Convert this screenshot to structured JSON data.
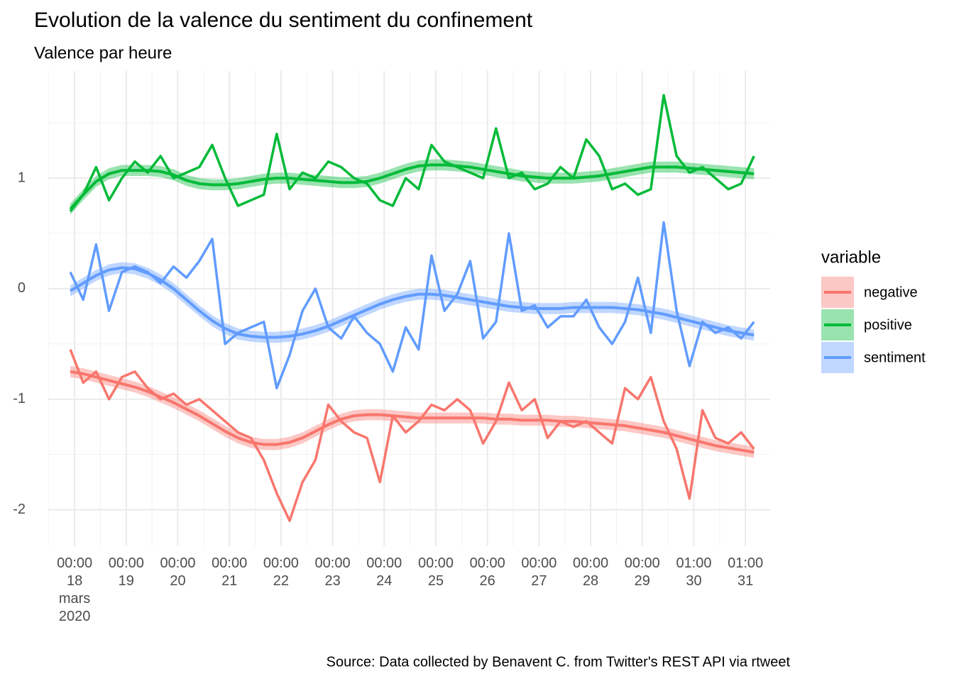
{
  "chart_data": {
    "type": "line",
    "title": "Evolution de la valence du sentiment du confinement",
    "subtitle": "Valence par heure",
    "caption": "Source: Data collected by Benavent C. from Twitter's REST API via rtweet",
    "legend_title": "variable",
    "legend": "right",
    "grid": true,
    "xlim": [
      "2020-03-17T11:45+01:00",
      "2020-03-31T12:30+02:00"
    ],
    "xticks": [
      {
        "value": "2020-03-18T00:00+01:00",
        "label": "00:00\n18\nmars\n2020"
      },
      {
        "value": "2020-03-19T00:00+01:00",
        "label": "00:00\n19"
      },
      {
        "value": "2020-03-20T00:00+01:00",
        "label": "00:00\n20"
      },
      {
        "value": "2020-03-21T00:00+01:00",
        "label": "00:00\n21"
      },
      {
        "value": "2020-03-22T00:00+01:00",
        "label": "00:00\n22"
      },
      {
        "value": "2020-03-23T00:00+01:00",
        "label": "00:00\n23"
      },
      {
        "value": "2020-03-24T00:00+01:00",
        "label": "00:00\n24"
      },
      {
        "value": "2020-03-25T00:00+01:00",
        "label": "00:00\n25"
      },
      {
        "value": "2020-03-26T00:00+01:00",
        "label": "00:00\n26"
      },
      {
        "value": "2020-03-27T00:00+01:00",
        "label": "00:00\n27"
      },
      {
        "value": "2020-03-28T00:00+01:00",
        "label": "00:00\n28"
      },
      {
        "value": "2020-03-29T00:00+01:00",
        "label": "00:00\n29"
      },
      {
        "value": "2020-03-30T01:00+02:00",
        "label": "01:00\n30"
      },
      {
        "value": "2020-03-31T01:00+02:00",
        "label": "01:00\n31"
      }
    ],
    "ylim": [
      -2.33,
      1.97
    ],
    "yticks": [
      -2,
      -1,
      0,
      1
    ],
    "x": [
      "2020-03-17T22:00+01:00",
      "2020-03-18T04:00+01:00",
      "2020-03-18T10:00+01:00",
      "2020-03-18T16:00+01:00",
      "2020-03-18T22:00+01:00",
      "2020-03-19T04:00+01:00",
      "2020-03-19T10:00+01:00",
      "2020-03-19T16:00+01:00",
      "2020-03-19T22:00+01:00",
      "2020-03-20T04:00+01:00",
      "2020-03-20T10:00+01:00",
      "2020-03-20T16:00+01:00",
      "2020-03-20T22:00+01:00",
      "2020-03-21T04:00+01:00",
      "2020-03-21T10:00+01:00",
      "2020-03-21T16:00+01:00",
      "2020-03-21T22:00+01:00",
      "2020-03-22T04:00+01:00",
      "2020-03-22T10:00+01:00",
      "2020-03-22T16:00+01:00",
      "2020-03-22T22:00+01:00",
      "2020-03-23T04:00+01:00",
      "2020-03-23T10:00+01:00",
      "2020-03-23T16:00+01:00",
      "2020-03-23T22:00+01:00",
      "2020-03-24T04:00+01:00",
      "2020-03-24T10:00+01:00",
      "2020-03-24T16:00+01:00",
      "2020-03-24T22:00+01:00",
      "2020-03-25T04:00+01:00",
      "2020-03-25T10:00+01:00",
      "2020-03-25T16:00+01:00",
      "2020-03-25T22:00+01:00",
      "2020-03-26T04:00+01:00",
      "2020-03-26T10:00+01:00",
      "2020-03-26T16:00+01:00",
      "2020-03-26T22:00+01:00",
      "2020-03-27T04:00+01:00",
      "2020-03-27T10:00+01:00",
      "2020-03-27T16:00+01:00",
      "2020-03-27T22:00+01:00",
      "2020-03-28T04:00+01:00",
      "2020-03-28T10:00+01:00",
      "2020-03-28T16:00+01:00",
      "2020-03-28T22:00+01:00",
      "2020-03-29T04:00+01:00",
      "2020-03-29T10:00+01:00",
      "2020-03-29T16:00+01:00",
      "2020-03-29T22:00+01:00",
      "2020-03-30T04:00+01:00",
      "2020-03-30T10:00+01:00",
      "2020-03-30T16:00+01:00",
      "2020-03-30T22:00+01:00",
      "2020-03-31T04:00+01:00"
    ],
    "series": [
      {
        "name": "negative",
        "color": "#F8766D",
        "band": 0.05,
        "values": [
          -0.55,
          -0.85,
          -0.75,
          -1.0,
          -0.8,
          -0.75,
          -0.9,
          -1.0,
          -0.95,
          -1.05,
          -1.0,
          -1.1,
          -1.2,
          -1.3,
          -1.35,
          -1.55,
          -1.85,
          -2.1,
          -1.75,
          -1.55,
          -1.05,
          -1.2,
          -1.3,
          -1.35,
          -1.75,
          -1.15,
          -1.3,
          -1.2,
          -1.05,
          -1.1,
          -1.0,
          -1.1,
          -1.4,
          -1.2,
          -0.85,
          -1.1,
          -1.0,
          -1.35,
          -1.2,
          -1.25,
          -1.2,
          -1.3,
          -1.4,
          -0.9,
          -1.0,
          -0.8,
          -1.2,
          -1.45,
          -1.9,
          -1.1,
          -1.35,
          -1.4,
          -1.3,
          -1.45
        ],
        "smooth": [
          -0.75,
          -0.77,
          -0.8,
          -0.83,
          -0.86,
          -0.89,
          -0.93,
          -0.98,
          -1.03,
          -1.09,
          -1.15,
          -1.22,
          -1.29,
          -1.35,
          -1.39,
          -1.41,
          -1.41,
          -1.39,
          -1.35,
          -1.29,
          -1.23,
          -1.18,
          -1.15,
          -1.14,
          -1.14,
          -1.15,
          -1.16,
          -1.17,
          -1.17,
          -1.17,
          -1.17,
          -1.17,
          -1.17,
          -1.18,
          -1.18,
          -1.19,
          -1.19,
          -1.19,
          -1.2,
          -1.2,
          -1.21,
          -1.22,
          -1.23,
          -1.24,
          -1.26,
          -1.28,
          -1.3,
          -1.33,
          -1.36,
          -1.39,
          -1.42,
          -1.44,
          -1.46,
          -1.48
        ]
      },
      {
        "name": "positive",
        "color": "#00BA38",
        "band": 0.05,
        "values": [
          0.7,
          0.85,
          1.1,
          0.8,
          1.0,
          1.15,
          1.05,
          1.2,
          1.0,
          1.05,
          1.1,
          1.3,
          1.0,
          0.75,
          0.8,
          0.85,
          1.4,
          0.9,
          1.05,
          1.0,
          1.15,
          1.1,
          1.0,
          0.95,
          0.8,
          0.75,
          1.0,
          0.9,
          1.3,
          1.15,
          1.1,
          1.05,
          1.0,
          1.45,
          1.0,
          1.05,
          0.9,
          0.95,
          1.1,
          1.0,
          1.35,
          1.2,
          0.9,
          0.95,
          0.85,
          0.9,
          1.75,
          1.2,
          1.05,
          1.1,
          1.0,
          0.9,
          0.95,
          1.2
        ],
        "smooth": [
          0.72,
          0.85,
          0.97,
          1.04,
          1.07,
          1.07,
          1.07,
          1.06,
          1.03,
          0.98,
          0.95,
          0.94,
          0.94,
          0.95,
          0.97,
          0.99,
          1.0,
          1.0,
          0.99,
          0.98,
          0.97,
          0.96,
          0.96,
          0.97,
          1.0,
          1.04,
          1.08,
          1.11,
          1.12,
          1.12,
          1.11,
          1.1,
          1.08,
          1.06,
          1.04,
          1.02,
          1.01,
          1.0,
          1.0,
          1.0,
          1.01,
          1.02,
          1.04,
          1.06,
          1.08,
          1.1,
          1.1,
          1.1,
          1.09,
          1.08,
          1.07,
          1.06,
          1.05,
          1.04
        ]
      },
      {
        "name": "sentiment",
        "color": "#619CFF",
        "band": 0.05,
        "values": [
          0.15,
          -0.1,
          0.4,
          -0.2,
          0.15,
          0.2,
          0.15,
          0.05,
          0.2,
          0.1,
          0.25,
          0.45,
          -0.5,
          -0.4,
          -0.35,
          -0.3,
          -0.9,
          -0.6,
          -0.2,
          0.0,
          -0.35,
          -0.45,
          -0.25,
          -0.4,
          -0.5,
          -0.75,
          -0.35,
          -0.55,
          0.3,
          -0.2,
          -0.05,
          0.25,
          -0.45,
          -0.3,
          0.5,
          -0.2,
          -0.15,
          -0.35,
          -0.25,
          -0.25,
          -0.1,
          -0.35,
          -0.5,
          -0.3,
          0.1,
          -0.4,
          0.6,
          -0.2,
          -0.7,
          -0.3,
          -0.4,
          -0.35,
          -0.45,
          -0.3
        ],
        "smooth": [
          -0.02,
          0.05,
          0.12,
          0.17,
          0.19,
          0.18,
          0.14,
          0.08,
          0.0,
          -0.1,
          -0.2,
          -0.29,
          -0.36,
          -0.41,
          -0.43,
          -0.44,
          -0.44,
          -0.43,
          -0.41,
          -0.38,
          -0.34,
          -0.29,
          -0.24,
          -0.19,
          -0.14,
          -0.1,
          -0.07,
          -0.05,
          -0.05,
          -0.06,
          -0.08,
          -0.1,
          -0.12,
          -0.14,
          -0.16,
          -0.17,
          -0.18,
          -0.18,
          -0.18,
          -0.17,
          -0.17,
          -0.17,
          -0.17,
          -0.18,
          -0.19,
          -0.21,
          -0.23,
          -0.26,
          -0.29,
          -0.32,
          -0.35,
          -0.38,
          -0.4,
          -0.42
        ]
      }
    ]
  }
}
